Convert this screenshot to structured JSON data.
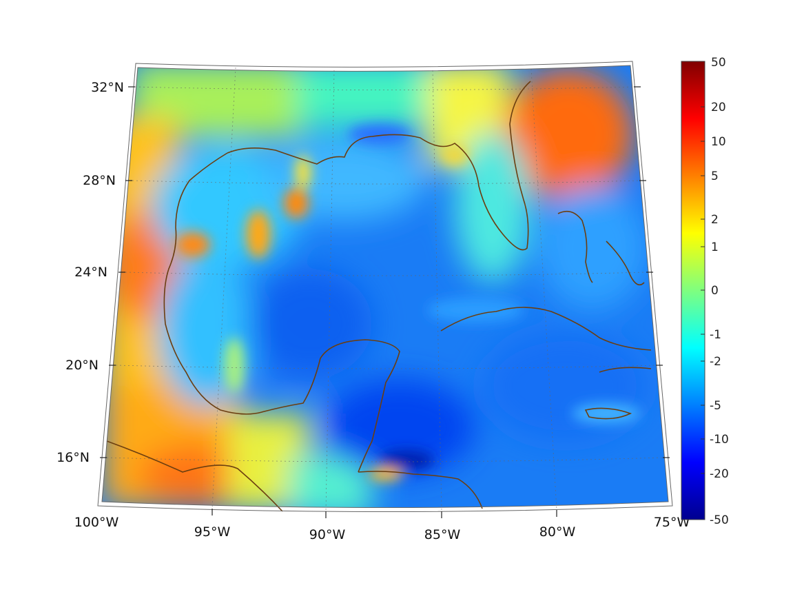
{
  "map": {
    "region": "",
    "lon_ticks": [
      {
        "value": -100,
        "label": "100°W"
      },
      {
        "value": -95,
        "label": "95°W"
      },
      {
        "value": -90,
        "label": "90°W"
      },
      {
        "value": -85,
        "label": "85°W"
      },
      {
        "value": -80,
        "label": "80°W"
      },
      {
        "value": -75,
        "label": "75°W"
      }
    ],
    "lat_ticks": [
      {
        "value": 16,
        "label": "16°N"
      },
      {
        "value": 20,
        "label": "20°N"
      },
      {
        "value": 24,
        "label": "24°N"
      },
      {
        "value": 28,
        "label": "28°N"
      },
      {
        "value": 32,
        "label": "32°N"
      }
    ],
    "extent": {
      "lon": [
        -100,
        -75
      ],
      "lat": [
        14,
        33
      ]
    },
    "coastline_color": "#6b3e10",
    "grid": true
  },
  "colorbar": {
    "orientation": "vertical",
    "placement": "right",
    "colormap": "jet",
    "labels": [
      "50",
      "20",
      "10",
      "5",
      "2",
      "1",
      "0",
      "-1",
      "-2",
      "-5",
      "-10",
      "-20",
      "-50"
    ],
    "max_color": "#800000",
    "min_color": "#00008f"
  }
}
